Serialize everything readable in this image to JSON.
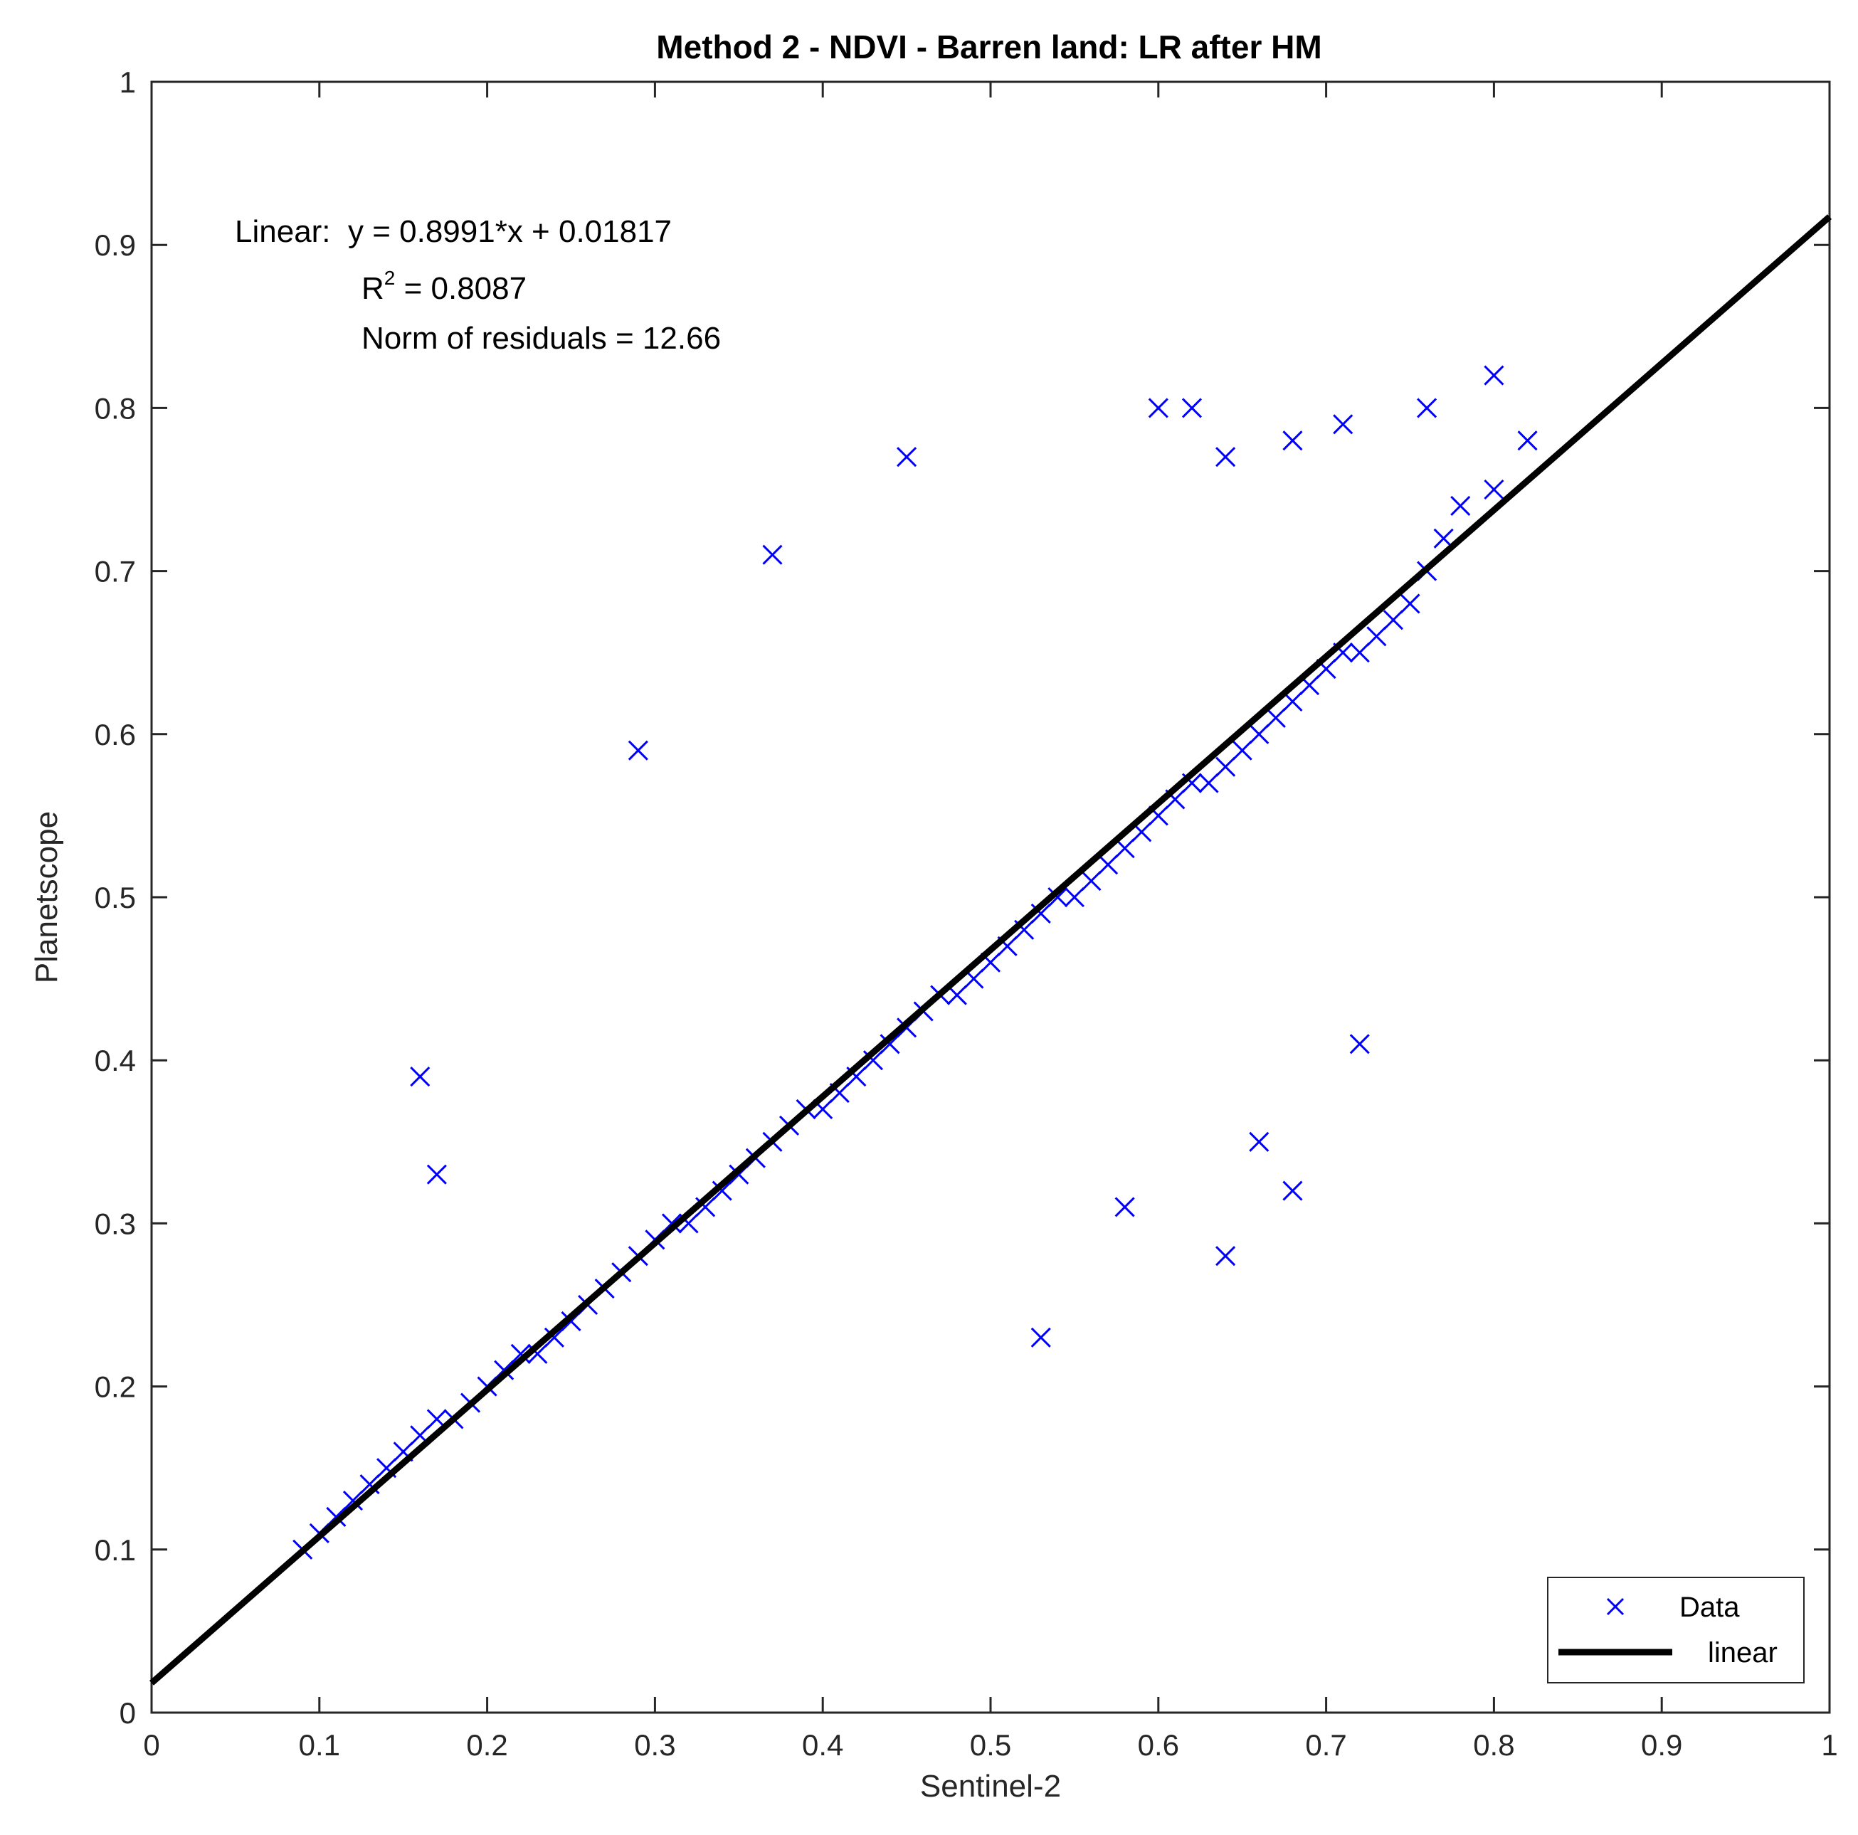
{
  "chart_data": {
    "type": "scatter",
    "title": "Method 2 - NDVI - Barren land: LR after HM",
    "xlabel": "Sentinel-2",
    "ylabel": "Planetscope",
    "xlim": [
      0,
      1
    ],
    "ylim": [
      0,
      1
    ],
    "xticks": [
      "0",
      "0.1",
      "0.2",
      "0.3",
      "0.4",
      "0.5",
      "0.6",
      "0.7",
      "0.8",
      "0.9",
      "1"
    ],
    "yticks": [
      "0",
      "0.1",
      "0.2",
      "0.3",
      "0.4",
      "0.5",
      "0.6",
      "0.7",
      "0.8",
      "0.9",
      "1"
    ],
    "grid": false,
    "legend_position": "bottom-right",
    "colors": {
      "data": "#0000ff",
      "fit": "#000000"
    },
    "series": [
      {
        "name": "Data",
        "marker": "x",
        "x": [
          0.09,
          0.1,
          0.11,
          0.12,
          0.13,
          0.14,
          0.15,
          0.16,
          0.17,
          0.18,
          0.19,
          0.2,
          0.21,
          0.22,
          0.23,
          0.24,
          0.25,
          0.26,
          0.27,
          0.28,
          0.29,
          0.3,
          0.31,
          0.32,
          0.33,
          0.34,
          0.35,
          0.36,
          0.37,
          0.38,
          0.39,
          0.4,
          0.41,
          0.42,
          0.43,
          0.44,
          0.45,
          0.46,
          0.47,
          0.48,
          0.49,
          0.5,
          0.51,
          0.52,
          0.53,
          0.54,
          0.55,
          0.56,
          0.57,
          0.58,
          0.59,
          0.6,
          0.61,
          0.62,
          0.63,
          0.64,
          0.65,
          0.66,
          0.67,
          0.68,
          0.69,
          0.7,
          0.71,
          0.72,
          0.73,
          0.74,
          0.75,
          0.76,
          0.77,
          0.78,
          0.8,
          0.82,
          0.16,
          0.17,
          0.29,
          0.37,
          0.45,
          0.6,
          0.62,
          0.64,
          0.68,
          0.71,
          0.76,
          0.8,
          0.58,
          0.53,
          0.68,
          0.72,
          0.66,
          0.64
        ],
        "y": [
          0.1,
          0.11,
          0.12,
          0.13,
          0.14,
          0.15,
          0.16,
          0.17,
          0.18,
          0.18,
          0.19,
          0.2,
          0.21,
          0.22,
          0.22,
          0.23,
          0.24,
          0.25,
          0.26,
          0.27,
          0.28,
          0.29,
          0.3,
          0.3,
          0.31,
          0.32,
          0.33,
          0.34,
          0.35,
          0.36,
          0.37,
          0.37,
          0.38,
          0.39,
          0.4,
          0.41,
          0.42,
          0.43,
          0.44,
          0.44,
          0.45,
          0.46,
          0.47,
          0.48,
          0.49,
          0.5,
          0.5,
          0.51,
          0.52,
          0.53,
          0.54,
          0.55,
          0.56,
          0.57,
          0.57,
          0.58,
          0.59,
          0.6,
          0.61,
          0.62,
          0.63,
          0.64,
          0.65,
          0.65,
          0.66,
          0.67,
          0.68,
          0.7,
          0.72,
          0.74,
          0.75,
          0.78,
          0.39,
          0.33,
          0.59,
          0.71,
          0.77,
          0.8,
          0.8,
          0.77,
          0.78,
          0.79,
          0.8,
          0.82,
          0.31,
          0.23,
          0.32,
          0.41,
          0.35,
          0.28
        ]
      },
      {
        "name": "linear",
        "kind": "line",
        "x": [
          0,
          1
        ],
        "y": [
          0.01817,
          0.91727
        ]
      }
    ],
    "annotations": {
      "equation": "Linear:  y = 0.8991*x + 0.01817",
      "r2_label": "R",
      "r2_sup": "2",
      "r2_value": " = 0.8087",
      "norm": "Norm of residuals = 12.66"
    }
  }
}
